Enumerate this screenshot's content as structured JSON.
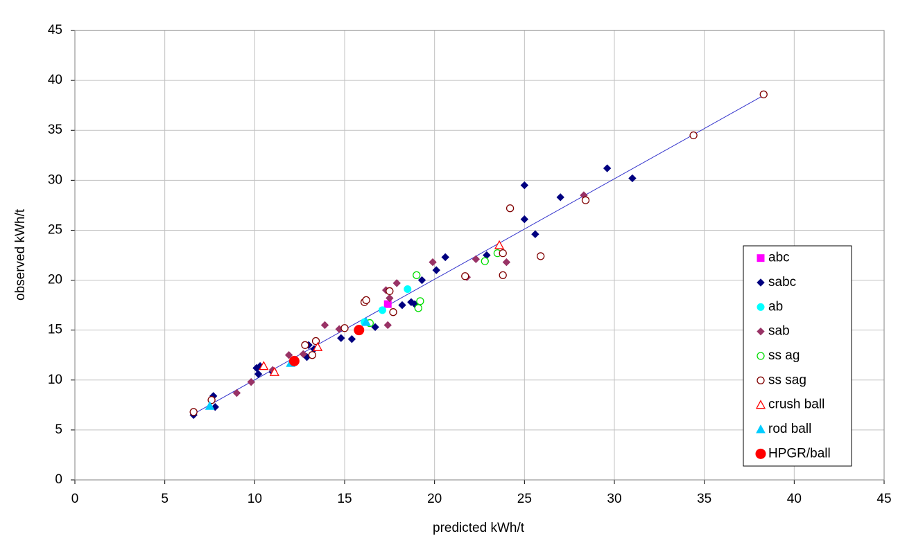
{
  "chart_data": {
    "type": "scatter",
    "x_label": "predicted kWh/t",
    "y_label": "observed kWh/t",
    "xlim": [
      0,
      45
    ],
    "ylim": [
      0,
      45
    ],
    "xticks": [
      0,
      5,
      10,
      15,
      20,
      25,
      30,
      35,
      40,
      45
    ],
    "yticks": [
      0,
      5,
      10,
      15,
      20,
      25,
      30,
      35,
      40,
      45
    ],
    "grid": true,
    "legend": "right",
    "trend_line": {
      "color": "#3333cc",
      "x": [
        6.6,
        38.3
      ],
      "values": [
        6.6,
        38.5
      ]
    },
    "series": [
      {
        "name": "abc",
        "color": "#ff00ff",
        "marker": "square",
        "filled": true,
        "x": [
          17.4
        ],
        "values": [
          17.6
        ]
      },
      {
        "name": "sabc",
        "color": "#000080",
        "marker": "diamond",
        "filled": true,
        "x": [
          6.6,
          7.7,
          7.8,
          10.1,
          10.3,
          10.2,
          11.0,
          12.9,
          13.0,
          13.3,
          14.8,
          15.4,
          16.7,
          18.2,
          18.7,
          18.9,
          19.3,
          20.1,
          20.6,
          22.9,
          25.0,
          25.0,
          25.6,
          27.0,
          29.6,
          31.0
        ],
        "values": [
          6.5,
          8.4,
          7.3,
          11.2,
          11.4,
          10.6,
          10.8,
          12.3,
          13.5,
          13.1,
          14.2,
          14.1,
          15.3,
          17.5,
          17.8,
          17.6,
          20.0,
          21.0,
          22.3,
          22.5,
          26.1,
          29.5,
          24.6,
          28.3,
          31.2,
          30.2
        ]
      },
      {
        "name": "ab",
        "color": "#00ffff",
        "marker": "circle",
        "filled": true,
        "x": [
          16.1,
          17.1,
          18.5
        ],
        "values": [
          15.8,
          17.0,
          19.1
        ]
      },
      {
        "name": "sab",
        "color": "#993366",
        "marker": "diamond",
        "filled": true,
        "x": [
          9.0,
          9.8,
          11.0,
          11.9,
          12.7,
          13.9,
          14.7,
          17.3,
          17.4,
          17.5,
          17.9,
          19.9,
          21.8,
          22.3,
          24.0,
          28.3
        ],
        "values": [
          8.7,
          9.8,
          11.0,
          12.5,
          12.6,
          15.5,
          15.1,
          19.0,
          15.5,
          18.2,
          19.7,
          21.8,
          20.3,
          22.1,
          21.8,
          28.5
        ]
      },
      {
        "name": "ss ag",
        "color": "#00dd00",
        "marker": "circle",
        "filled": false,
        "x": [
          16.4,
          19.0,
          19.1,
          19.2,
          22.8,
          23.5
        ],
        "values": [
          15.7,
          20.5,
          17.2,
          17.9,
          21.9,
          22.7
        ]
      },
      {
        "name": "ss sag",
        "color": "#800000",
        "marker": "circle",
        "filled": false,
        "x": [
          6.6,
          7.6,
          12.8,
          13.2,
          13.4,
          15.0,
          16.1,
          16.2,
          17.5,
          17.7,
          21.7,
          23.8,
          23.8,
          24.2,
          25.9,
          28.4,
          34.4,
          38.3
        ],
        "values": [
          6.8,
          8.0,
          13.5,
          12.5,
          13.9,
          15.2,
          17.8,
          18.0,
          18.9,
          16.8,
          20.4,
          22.7,
          20.5,
          27.2,
          22.4,
          28.0,
          34.5,
          38.6
        ]
      },
      {
        "name": "crush ball",
        "color": "#ff0000",
        "marker": "triangle",
        "filled": false,
        "x": [
          10.5,
          11.1,
          13.5,
          23.6
        ],
        "values": [
          11.4,
          10.8,
          13.3,
          23.5
        ]
      },
      {
        "name": "rod ball",
        "color": "#00ccff",
        "marker": "triangle",
        "filled": true,
        "x": [
          7.5,
          12.0,
          16.2
        ],
        "values": [
          7.4,
          11.7,
          15.8
        ]
      },
      {
        "name": "HPGR/ball",
        "color": "#ff0000",
        "marker": "bigcircle",
        "filled": true,
        "x": [
          12.2,
          15.8
        ],
        "values": [
          11.9,
          15.0
        ]
      }
    ]
  }
}
